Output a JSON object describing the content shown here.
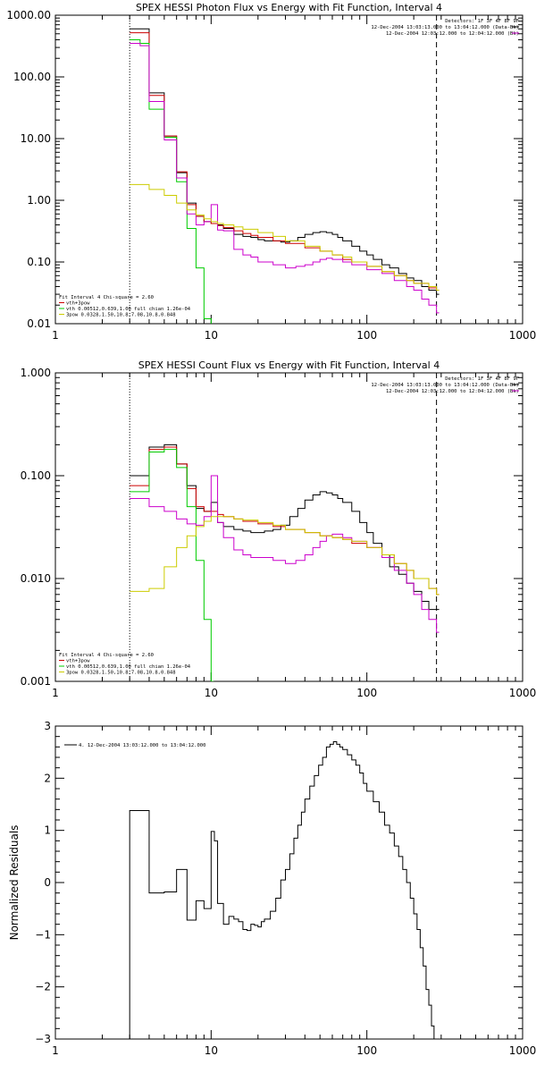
{
  "colors": {
    "black": "#000000",
    "red": "#cc0000",
    "green": "#00cc00",
    "magenta": "#cc00cc",
    "yellow": "#cccc00"
  },
  "chart_data": [
    {
      "type": "line",
      "title": "SPEX HESSI Photon Flux vs Energy with Fit Function, Interval 4",
      "xscale": "log",
      "yscale": "log",
      "xlim": [
        1,
        1000
      ],
      "ylim": [
        0.01,
        1000
      ],
      "xticks": [
        1,
        10,
        100,
        1000
      ],
      "xtick_labels": [
        "1",
        "10",
        "100",
        "1000"
      ],
      "yticks": [
        0.01,
        0.1,
        1,
        10,
        100,
        1000
      ],
      "ytick_labels": [
        "0.01",
        "0.10",
        "1.00",
        "10.00",
        "100.00",
        "1000.00"
      ],
      "ylabel": "",
      "header": [
        "Detectors: 1F 3F 4F 8F 9F",
        "12-Dec-2004 13:03:13.000 to 13:04:12.000 (Data-Bk)",
        "12-Dec-2004 12:03:12.000 to 12:04:12.000 (Bk)"
      ],
      "legend": [
        "Fit Interval  4   Chi-square = 2.60",
        "vth+3pow",
        "vth 0.00512,0.639,1.00  full chian 1.26e-04",
        "3pow 0.0328,1.50,10.8,7.08,10.8,0.848"
      ],
      "vlines": [
        3,
        280
      ],
      "series": [
        {
          "color": "black",
          "x": [
            3,
            3.5,
            4,
            5,
            6,
            7,
            8,
            9,
            10,
            11,
            12,
            14,
            16,
            18,
            20,
            22,
            25,
            28,
            32,
            36,
            40,
            45,
            50,
            55,
            60,
            65,
            70,
            80,
            90,
            100,
            110,
            125,
            140,
            160,
            180,
            200,
            225,
            250,
            280
          ],
          "values": [
            600,
            600,
            55,
            11,
            2.8,
            0.9,
            0.55,
            0.45,
            0.42,
            0.4,
            0.35,
            0.28,
            0.26,
            0.25,
            0.23,
            0.22,
            0.22,
            0.21,
            0.22,
            0.25,
            0.28,
            0.3,
            0.31,
            0.3,
            0.28,
            0.25,
            0.22,
            0.18,
            0.15,
            0.13,
            0.11,
            0.09,
            0.08,
            0.065,
            0.055,
            0.05,
            0.04,
            0.035,
            0.03
          ]
        },
        {
          "color": "red",
          "x": [
            3,
            3.5,
            4,
            5,
            6,
            7,
            8,
            9,
            10,
            11,
            12,
            14,
            16,
            18,
            20,
            25,
            30,
            40,
            50,
            60,
            70,
            80,
            100,
            125,
            150,
            180,
            200,
            250,
            280
          ],
          "values": [
            520,
            520,
            50,
            11,
            2.9,
            0.85,
            0.55,
            0.45,
            0.42,
            0.39,
            0.36,
            0.32,
            0.29,
            0.27,
            0.25,
            0.22,
            0.2,
            0.17,
            0.15,
            0.13,
            0.11,
            0.1,
            0.085,
            0.07,
            0.06,
            0.05,
            0.045,
            0.038,
            0.035
          ]
        },
        {
          "color": "green",
          "x": [
            3,
            3.5,
            4,
            5,
            6,
            7,
            8,
            9,
            10
          ],
          "values": [
            400,
            350,
            30,
            10.5,
            2,
            0.35,
            0.08,
            0.012,
            0.008
          ]
        },
        {
          "color": "magenta",
          "x": [
            3,
            3.5,
            4,
            5,
            6,
            7,
            8,
            9,
            10,
            11,
            12,
            14,
            16,
            18,
            20,
            25,
            30,
            35,
            40,
            45,
            50,
            55,
            60,
            70,
            80,
            100,
            125,
            150,
            180,
            200,
            225,
            250,
            280
          ],
          "values": [
            350,
            320,
            40,
            9.5,
            2.3,
            0.6,
            0.4,
            0.45,
            0.85,
            0.33,
            0.32,
            0.16,
            0.13,
            0.12,
            0.1,
            0.09,
            0.08,
            0.085,
            0.09,
            0.1,
            0.11,
            0.115,
            0.11,
            0.1,
            0.09,
            0.075,
            0.065,
            0.05,
            0.04,
            0.035,
            0.025,
            0.02,
            0.015
          ]
        },
        {
          "color": "yellow",
          "x": [
            3,
            4,
            5,
            6,
            7,
            8,
            9,
            10,
            11,
            12,
            14,
            16,
            20,
            25,
            30,
            40,
            50,
            60,
            70,
            80,
            100,
            125,
            150,
            180,
            200,
            250,
            280
          ],
          "values": [
            1.8,
            1.5,
            1.2,
            0.9,
            0.7,
            0.58,
            0.5,
            0.45,
            0.42,
            0.4,
            0.37,
            0.34,
            0.3,
            0.26,
            0.22,
            0.18,
            0.15,
            0.13,
            0.12,
            0.1,
            0.085,
            0.07,
            0.06,
            0.05,
            0.045,
            0.04,
            0.035
          ]
        }
      ]
    },
    {
      "type": "line",
      "title": "SPEX HESSI Count Flux vs Energy with Fit Function, Interval 4",
      "xscale": "log",
      "yscale": "log",
      "xlim": [
        1,
        1000
      ],
      "ylim": [
        0.001,
        1
      ],
      "xticks": [
        1,
        10,
        100,
        1000
      ],
      "xtick_labels": [
        "1",
        "10",
        "100",
        "1000"
      ],
      "yticks": [
        0.001,
        0.01,
        0.1,
        1
      ],
      "ytick_labels": [
        "0.001",
        "0.010",
        "0.100",
        "1.000"
      ],
      "ylabel": "",
      "header": [
        "Detectors: 1F 3F 4F 8F 9F",
        "12-Dec-2004 13:03:13.000 to 13:04:12.000 (Data-Bk)",
        "12-Dec-2004 12:03:12.000 to 12:04:12.000 (Bk)"
      ],
      "legend": [
        "Fit Interval  4   Chi-square = 2.60",
        "vth+3pow",
        "vth 0.00512,0.639,1.00  full chian 1.26e-04",
        "3pow 0.0328,1.50,10.8,7.08,10.8,0.848"
      ],
      "vlines": [
        3,
        280
      ],
      "series": [
        {
          "color": "black",
          "x": [
            3,
            3.5,
            4,
            5,
            6,
            7,
            8,
            9,
            10,
            11,
            12,
            14,
            16,
            18,
            20,
            22,
            25,
            28,
            32,
            36,
            40,
            45,
            50,
            55,
            60,
            65,
            70,
            80,
            90,
            100,
            110,
            125,
            140,
            160,
            180,
            200,
            225,
            250,
            280
          ],
          "values": [
            0.1,
            0.1,
            0.19,
            0.2,
            0.13,
            0.08,
            0.048,
            0.045,
            0.055,
            0.035,
            0.032,
            0.03,
            0.029,
            0.028,
            0.028,
            0.029,
            0.03,
            0.033,
            0.04,
            0.048,
            0.058,
            0.065,
            0.07,
            0.068,
            0.065,
            0.06,
            0.055,
            0.045,
            0.035,
            0.028,
            0.022,
            0.017,
            0.013,
            0.011,
            0.009,
            0.0075,
            0.006,
            0.005,
            0.005
          ]
        },
        {
          "color": "red",
          "x": [
            3,
            3.5,
            4,
            5,
            6,
            7,
            8,
            9,
            10,
            11,
            12,
            14,
            16,
            20,
            25,
            30,
            40,
            50,
            60,
            70,
            80,
            100,
            125,
            150,
            180,
            200,
            250,
            280
          ],
          "values": [
            0.08,
            0.08,
            0.18,
            0.19,
            0.13,
            0.075,
            0.05,
            0.045,
            0.045,
            0.042,
            0.04,
            0.038,
            0.036,
            0.034,
            0.032,
            0.03,
            0.028,
            0.026,
            0.025,
            0.024,
            0.022,
            0.02,
            0.017,
            0.014,
            0.012,
            0.01,
            0.008,
            0.007
          ]
        },
        {
          "color": "green",
          "x": [
            3,
            3.5,
            4,
            5,
            6,
            7,
            8,
            9,
            10
          ],
          "values": [
            0.07,
            0.07,
            0.17,
            0.18,
            0.12,
            0.05,
            0.015,
            0.004,
            0.001
          ]
        },
        {
          "color": "magenta",
          "x": [
            3,
            3.5,
            4,
            5,
            6,
            7,
            8,
            9,
            10,
            11,
            12,
            14,
            16,
            18,
            20,
            25,
            30,
            35,
            40,
            45,
            50,
            55,
            60,
            70,
            80,
            100,
            125,
            150,
            180,
            200,
            225,
            250,
            280
          ],
          "values": [
            0.06,
            0.06,
            0.05,
            0.045,
            0.038,
            0.034,
            0.033,
            0.04,
            0.1,
            0.035,
            0.025,
            0.019,
            0.017,
            0.016,
            0.016,
            0.015,
            0.014,
            0.015,
            0.017,
            0.02,
            0.023,
            0.026,
            0.027,
            0.025,
            0.023,
            0.02,
            0.016,
            0.012,
            0.009,
            0.007,
            0.005,
            0.004,
            0.003
          ]
        },
        {
          "color": "yellow",
          "x": [
            3,
            3.5,
            4,
            5,
            6,
            7,
            8,
            9,
            10,
            11,
            12,
            14,
            16,
            20,
            25,
            30,
            40,
            50,
            60,
            70,
            80,
            100,
            125,
            150,
            180,
            200,
            250,
            280
          ],
          "values": [
            0.0075,
            0.0075,
            0.008,
            0.013,
            0.02,
            0.026,
            0.032,
            0.036,
            0.04,
            0.04,
            0.04,
            0.038,
            0.037,
            0.035,
            0.033,
            0.03,
            0.028,
            0.026,
            0.025,
            0.024,
            0.023,
            0.02,
            0.017,
            0.014,
            0.012,
            0.01,
            0.008,
            0.007
          ]
        }
      ]
    },
    {
      "type": "line",
      "title": "",
      "xscale": "log",
      "yscale": "linear",
      "xlim": [
        1,
        1000
      ],
      "ylim": [
        -3,
        3
      ],
      "xticks": [
        1,
        10,
        100,
        1000
      ],
      "xtick_labels": [
        "1",
        "10",
        "100",
        "1000"
      ],
      "yticks": [
        -3,
        -2,
        -1,
        0,
        1,
        2,
        3
      ],
      "ytick_labels": [
        "−3",
        "−2",
        "−1",
        "0",
        "1",
        "2",
        "3"
      ],
      "ylabel": "Normalized Residuals",
      "header": [],
      "legend": [
        "4. 12-Dec-2004 13:03:12.000 to 13:04:12.000"
      ],
      "vlines": [],
      "series": [
        {
          "color": "black",
          "x": [
            3,
            3.3,
            3.6,
            4,
            4.5,
            5,
            5.5,
            6,
            6.5,
            7,
            7.5,
            8,
            8.5,
            9,
            9.5,
            10,
            10.5,
            11,
            12,
            13,
            14,
            15,
            16,
            17,
            18,
            19,
            20,
            21,
            22,
            24,
            26,
            28,
            30,
            32,
            34,
            36,
            38,
            40,
            43,
            46,
            49,
            52,
            55,
            58,
            61,
            64,
            67,
            70,
            75,
            80,
            85,
            90,
            95,
            100,
            110,
            120,
            130,
            140,
            150,
            160,
            170,
            180,
            190,
            200,
            210,
            220,
            230,
            240,
            250,
            260,
            270,
            280
          ],
          "values": [
            1.38,
            1.38,
            1.38,
            -0.2,
            -0.2,
            -0.18,
            -0.18,
            0.25,
            0.25,
            -0.72,
            -0.72,
            -0.35,
            -0.35,
            -0.5,
            -0.5,
            0.98,
            0.8,
            -0.4,
            -0.8,
            -0.65,
            -0.7,
            -0.75,
            -0.9,
            -0.92,
            -0.8,
            -0.82,
            -0.85,
            -0.75,
            -0.7,
            -0.55,
            -0.3,
            0.05,
            0.25,
            0.55,
            0.85,
            1.1,
            1.35,
            1.6,
            1.85,
            2.05,
            2.25,
            2.4,
            2.6,
            2.65,
            2.7,
            2.65,
            2.6,
            2.55,
            2.45,
            2.35,
            2.25,
            2.1,
            1.9,
            1.75,
            1.55,
            1.35,
            1.1,
            0.95,
            0.7,
            0.5,
            0.25,
            0.0,
            -0.3,
            -0.6,
            -0.9,
            -1.25,
            -1.6,
            -2.05,
            -2.35,
            -2.75,
            -3.0,
            -3.0
          ]
        }
      ]
    }
  ]
}
